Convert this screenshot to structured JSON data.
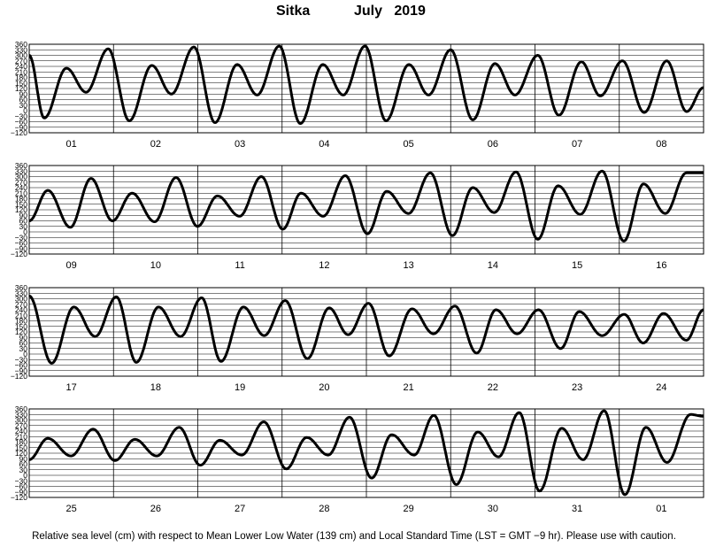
{
  "header": {
    "station": "Sitka",
    "month": "July",
    "year": "2019"
  },
  "footnote": "Relative sea level (cm) with respect to Mean Lower Low Water (139 cm) and Local Standard Time (LST = GMT −9 hr). Please use with caution.",
  "chart_data": [
    {
      "type": "line",
      "days": [
        "01",
        "02",
        "03",
        "04",
        "05",
        "06",
        "07",
        "08"
      ],
      "yticks": [
        360,
        330,
        300,
        270,
        240,
        210,
        180,
        150,
        120,
        90,
        60,
        30,
        0,
        -30,
        -60,
        -90,
        -120
      ],
      "ylim": [
        -120,
        360
      ],
      "series": [
        {
          "hours": [
            0,
            4.3,
            10.6,
            16.2,
            22.5,
            28.5,
            34.9,
            40.5,
            46.9,
            52.9,
            59.2,
            64.9,
            71.2,
            77.2,
            83.6,
            89.4,
            95.6,
            101.6,
            108.1,
            113.7,
            120.0,
            126.3,
            132.6,
            138.3,
            144.8,
            150.8,
            157.2,
            162.6,
            168.9,
            175.1,
            181.5,
            187.2,
            192.0
          ],
          "level": [
            300,
            -40,
            230,
            100,
            335,
            -55,
            245,
            90,
            345,
            -65,
            250,
            85,
            350,
            -70,
            250,
            85,
            350,
            -55,
            250,
            85,
            330,
            -50,
            255,
            85,
            300,
            -25,
            265,
            80,
            270,
            -10,
            270,
            -5,
            125
          ]
        }
      ]
    },
    {
      "type": "line",
      "days": [
        "09",
        "10",
        "11",
        "12",
        "13",
        "14",
        "15",
        "16"
      ],
      "yticks": [
        360,
        330,
        300,
        270,
        240,
        210,
        180,
        150,
        120,
        90,
        60,
        30,
        0,
        -30,
        -60,
        -90,
        -120
      ],
      "ylim": [
        -120,
        360
      ],
      "series": [
        {
          "hours": [
            0,
            5.3,
            11.7,
            17.6,
            23.7,
            29.3,
            35.7,
            41.8,
            47.9,
            53.6,
            59.9,
            66.1,
            72.2,
            77.4,
            83.7,
            90.0,
            96.3,
            101.8,
            108.0,
            114.2,
            120.5,
            126.3,
            132.4,
            138.6,
            144.8,
            150.6,
            156.9,
            163.1,
            169.3,
            174.9,
            181.1,
            187.1,
            192.0
          ],
          "level": [
            60,
            225,
            25,
            290,
            60,
            210,
            55,
            295,
            30,
            195,
            85,
            300,
            15,
            210,
            85,
            305,
            -10,
            220,
            100,
            320,
            -20,
            240,
            105,
            325,
            -40,
            250,
            95,
            330,
            -50,
            260,
            100,
            320,
            320
          ]
        }
      ]
    },
    {
      "type": "line",
      "days": [
        "17",
        "18",
        "19",
        "20",
        "21",
        "22",
        "23",
        "24"
      ],
      "yticks": [
        360,
        330,
        300,
        270,
        240,
        210,
        180,
        150,
        120,
        90,
        60,
        30,
        0,
        -30,
        -60,
        -90,
        -120
      ],
      "ylim": [
        -120,
        360
      ],
      "series": [
        {
          "hours": [
            0,
            6.4,
            12.7,
            18.8,
            24.8,
            30.5,
            36.8,
            43.1,
            49.1,
            54.6,
            61.0,
            66.9,
            72.9,
            79.2,
            85.4,
            90.8,
            96.6,
            102.5,
            109.0,
            115.1,
            121.2,
            127.4,
            132.9,
            138.9,
            145.0,
            151.3,
            156.6,
            163.1,
            169.4,
            174.8,
            180.6,
            187.1,
            192.0
          ],
          "level": [
            315,
            -50,
            255,
            95,
            310,
            -45,
            255,
            95,
            305,
            -40,
            255,
            100,
            290,
            -25,
            250,
            105,
            275,
            -10,
            245,
            110,
            260,
            5,
            240,
            110,
            240,
            30,
            230,
            100,
            215,
            60,
            220,
            75,
            240
          ]
        }
      ]
    },
    {
      "type": "line",
      "days": [
        "25",
        "26",
        "27",
        "28",
        "29",
        "30",
        "31",
        "01"
      ],
      "yticks": [
        360,
        330,
        300,
        270,
        240,
        210,
        180,
        150,
        120,
        90,
        60,
        30,
        0,
        -30,
        -60,
        -90,
        -120
      ],
      "ylim": [
        -120,
        360
      ],
      "series": [
        {
          "hours": [
            0,
            5.3,
            11.9,
            18.2,
            24.4,
            30.1,
            36.3,
            42.7,
            48.7,
            54.3,
            60.5,
            66.8,
            73.2,
            79.0,
            85.1,
            91.2,
            97.5,
            103.2,
            109.6,
            115.2,
            121.6,
            127.7,
            133.6,
            139.5,
            145.3,
            151.6,
            157.7,
            163.7,
            169.6,
            175.6,
            181.6,
            188.3,
            192.0
          ],
          "level": [
            85,
            200,
            105,
            250,
            80,
            195,
            105,
            260,
            55,
            190,
            110,
            290,
            35,
            205,
            110,
            315,
            -15,
            220,
            110,
            325,
            -50,
            235,
            100,
            340,
            -85,
            255,
            85,
            350,
            -105,
            260,
            70,
            330,
            320
          ]
        }
      ]
    }
  ]
}
